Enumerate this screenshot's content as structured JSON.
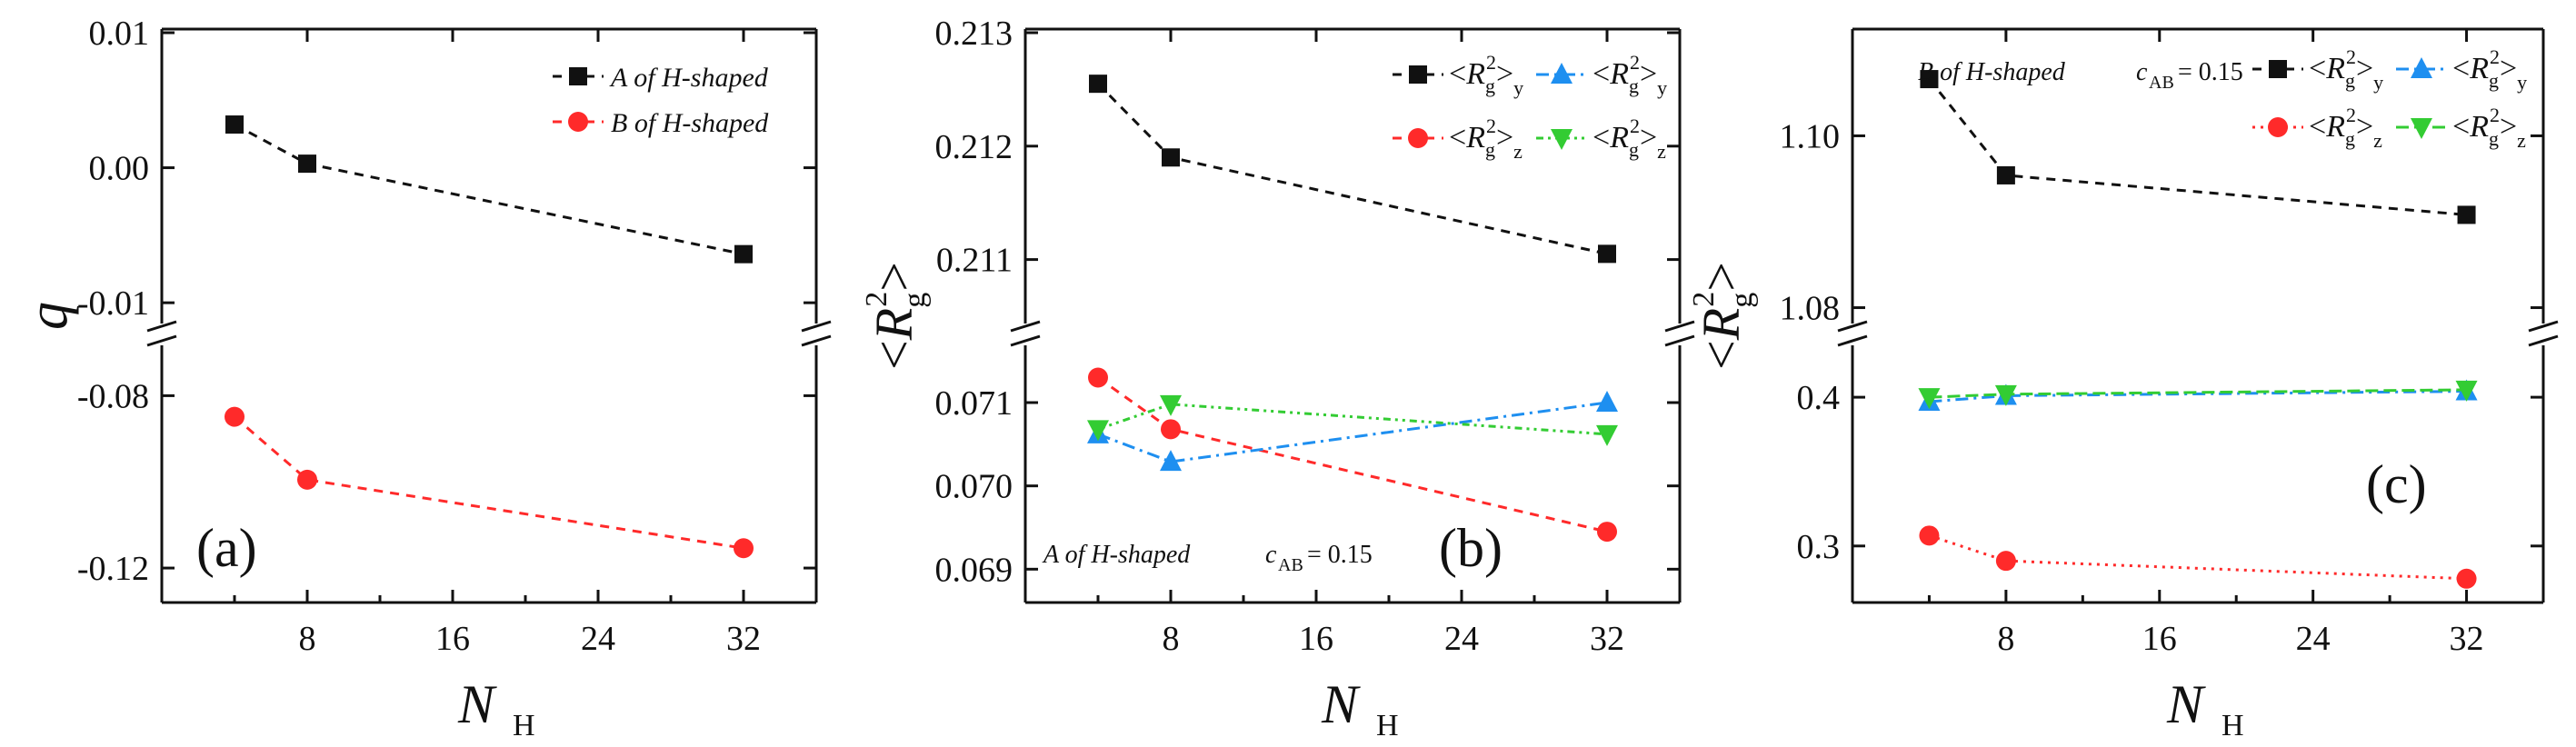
{
  "colors": {
    "black": "#111111",
    "red": "#ff2a2a",
    "blue": "#1e8ff0",
    "green": "#33cc33"
  },
  "chart_data": [
    {
      "type": "line",
      "panel": "(a)",
      "xlabel": "N",
      "xlabel_sub": "H",
      "ylabel": "q",
      "x": [
        4,
        8,
        32
      ],
      "xticks": [
        8,
        16,
        24,
        32
      ],
      "xlim": [
        0,
        36
      ],
      "ylim_top": [
        -0.011,
        0.01
      ],
      "ylim_bottom": [
        -0.128,
        -0.07
      ],
      "yticks_top": [
        "0.01",
        "0.00",
        "-0.01"
      ],
      "yticks_bottom": [
        "-0.08",
        "-0.12"
      ],
      "series": [
        {
          "name": "A of H-shaped",
          "values": [
            0.0032,
            0.0003,
            -0.0064
          ],
          "segment": "top",
          "color": "#111111",
          "marker": "square",
          "dash": "10,8"
        },
        {
          "name": "B of H-shaped",
          "values": [
            -0.0849,
            -0.0995,
            -0.1154
          ],
          "segment": "bottom",
          "color": "#ff2a2a",
          "marker": "circle",
          "dash": "10,8"
        }
      ],
      "legend": [
        "A of H-shaped",
        "B of H-shaped"
      ]
    },
    {
      "type": "line",
      "panel": "(b)",
      "xlabel": "N",
      "xlabel_sub": "H",
      "ylabel": "<R g 2>",
      "annotation": "A of H-shaped",
      "annotation2": "c",
      "annotation2_sub": "AB",
      "annotation2_val": " = 0.15",
      "x": [
        4,
        8,
        32
      ],
      "xticks": [
        8,
        16,
        24,
        32
      ],
      "xlim": [
        0,
        36
      ],
      "ylim_top": [
        0.2105,
        0.213
      ],
      "ylim_bottom": [
        0.0686,
        0.0716
      ],
      "yticks_top": [
        "0.213",
        "0.212",
        "0.211"
      ],
      "yticks_bottom": [
        "0.071",
        "0.070",
        "0.069"
      ],
      "series": [
        {
          "name": "<Rg2>y",
          "values": [
            0.21255,
            0.2119,
            0.21105
          ],
          "segment": "top",
          "color": "#111111",
          "marker": "square",
          "dash": "10,8"
        },
        {
          "name": "<Rg2>z",
          "values": [
            0.0713,
            0.07068,
            0.06945
          ],
          "segment": "bottom",
          "color": "#ff2a2a",
          "marker": "circle",
          "dash": "10,8"
        },
        {
          "name": "<Rg2>y",
          "values": [
            0.07062,
            0.07029,
            0.071
          ],
          "segment": "bottom",
          "color": "#1e8ff0",
          "marker": "triangle-up",
          "dash": "14,6,3,6"
        },
        {
          "name": "<Rg2>z",
          "values": [
            0.07068,
            0.07098,
            0.07062
          ],
          "segment": "bottom",
          "color": "#33cc33",
          "marker": "triangle-down",
          "dash": "8,5,3,5,3,5"
        }
      ]
    },
    {
      "type": "line",
      "panel": "(c)",
      "xlabel": "N",
      "xlabel_sub": "H",
      "ylabel": "<R g 2>",
      "annotation": "B of H-shaped",
      "annotation2": "c",
      "annotation2_sub": "AB",
      "annotation2_val": " = 0.15",
      "x": [
        4,
        8,
        32
      ],
      "xticks": [
        8,
        16,
        24,
        32
      ],
      "xlim": [
        0,
        36
      ],
      "ylim_top": [
        1.079,
        1.112
      ],
      "ylim_bottom": [
        0.262,
        0.43
      ],
      "yticks_top": [
        "1.10",
        "1.08"
      ],
      "yticks_bottom": [
        "0.4",
        "0.3"
      ],
      "series": [
        {
          "name": "<Rg2>y",
          "values": [
            1.1066,
            1.0954,
            1.0908
          ],
          "segment": "top",
          "color": "#111111",
          "marker": "square",
          "dash": "10,8"
        },
        {
          "name": "<Rg2>y",
          "values": [
            0.397,
            0.401,
            0.404
          ],
          "segment": "bottom",
          "color": "#1e8ff0",
          "marker": "triangle-up",
          "dash": "14,6,3,6"
        },
        {
          "name": "<Rg2>z",
          "values": [
            0.307,
            0.29,
            0.278
          ],
          "segment": "bottom",
          "color": "#ff2a2a",
          "marker": "circle",
          "dash": "3,6"
        },
        {
          "name": "<Rg2>z",
          "values": [
            0.4,
            0.402,
            0.405
          ],
          "segment": "bottom",
          "color": "#33cc33",
          "marker": "triangle-down",
          "dash": "14,6"
        }
      ]
    }
  ]
}
